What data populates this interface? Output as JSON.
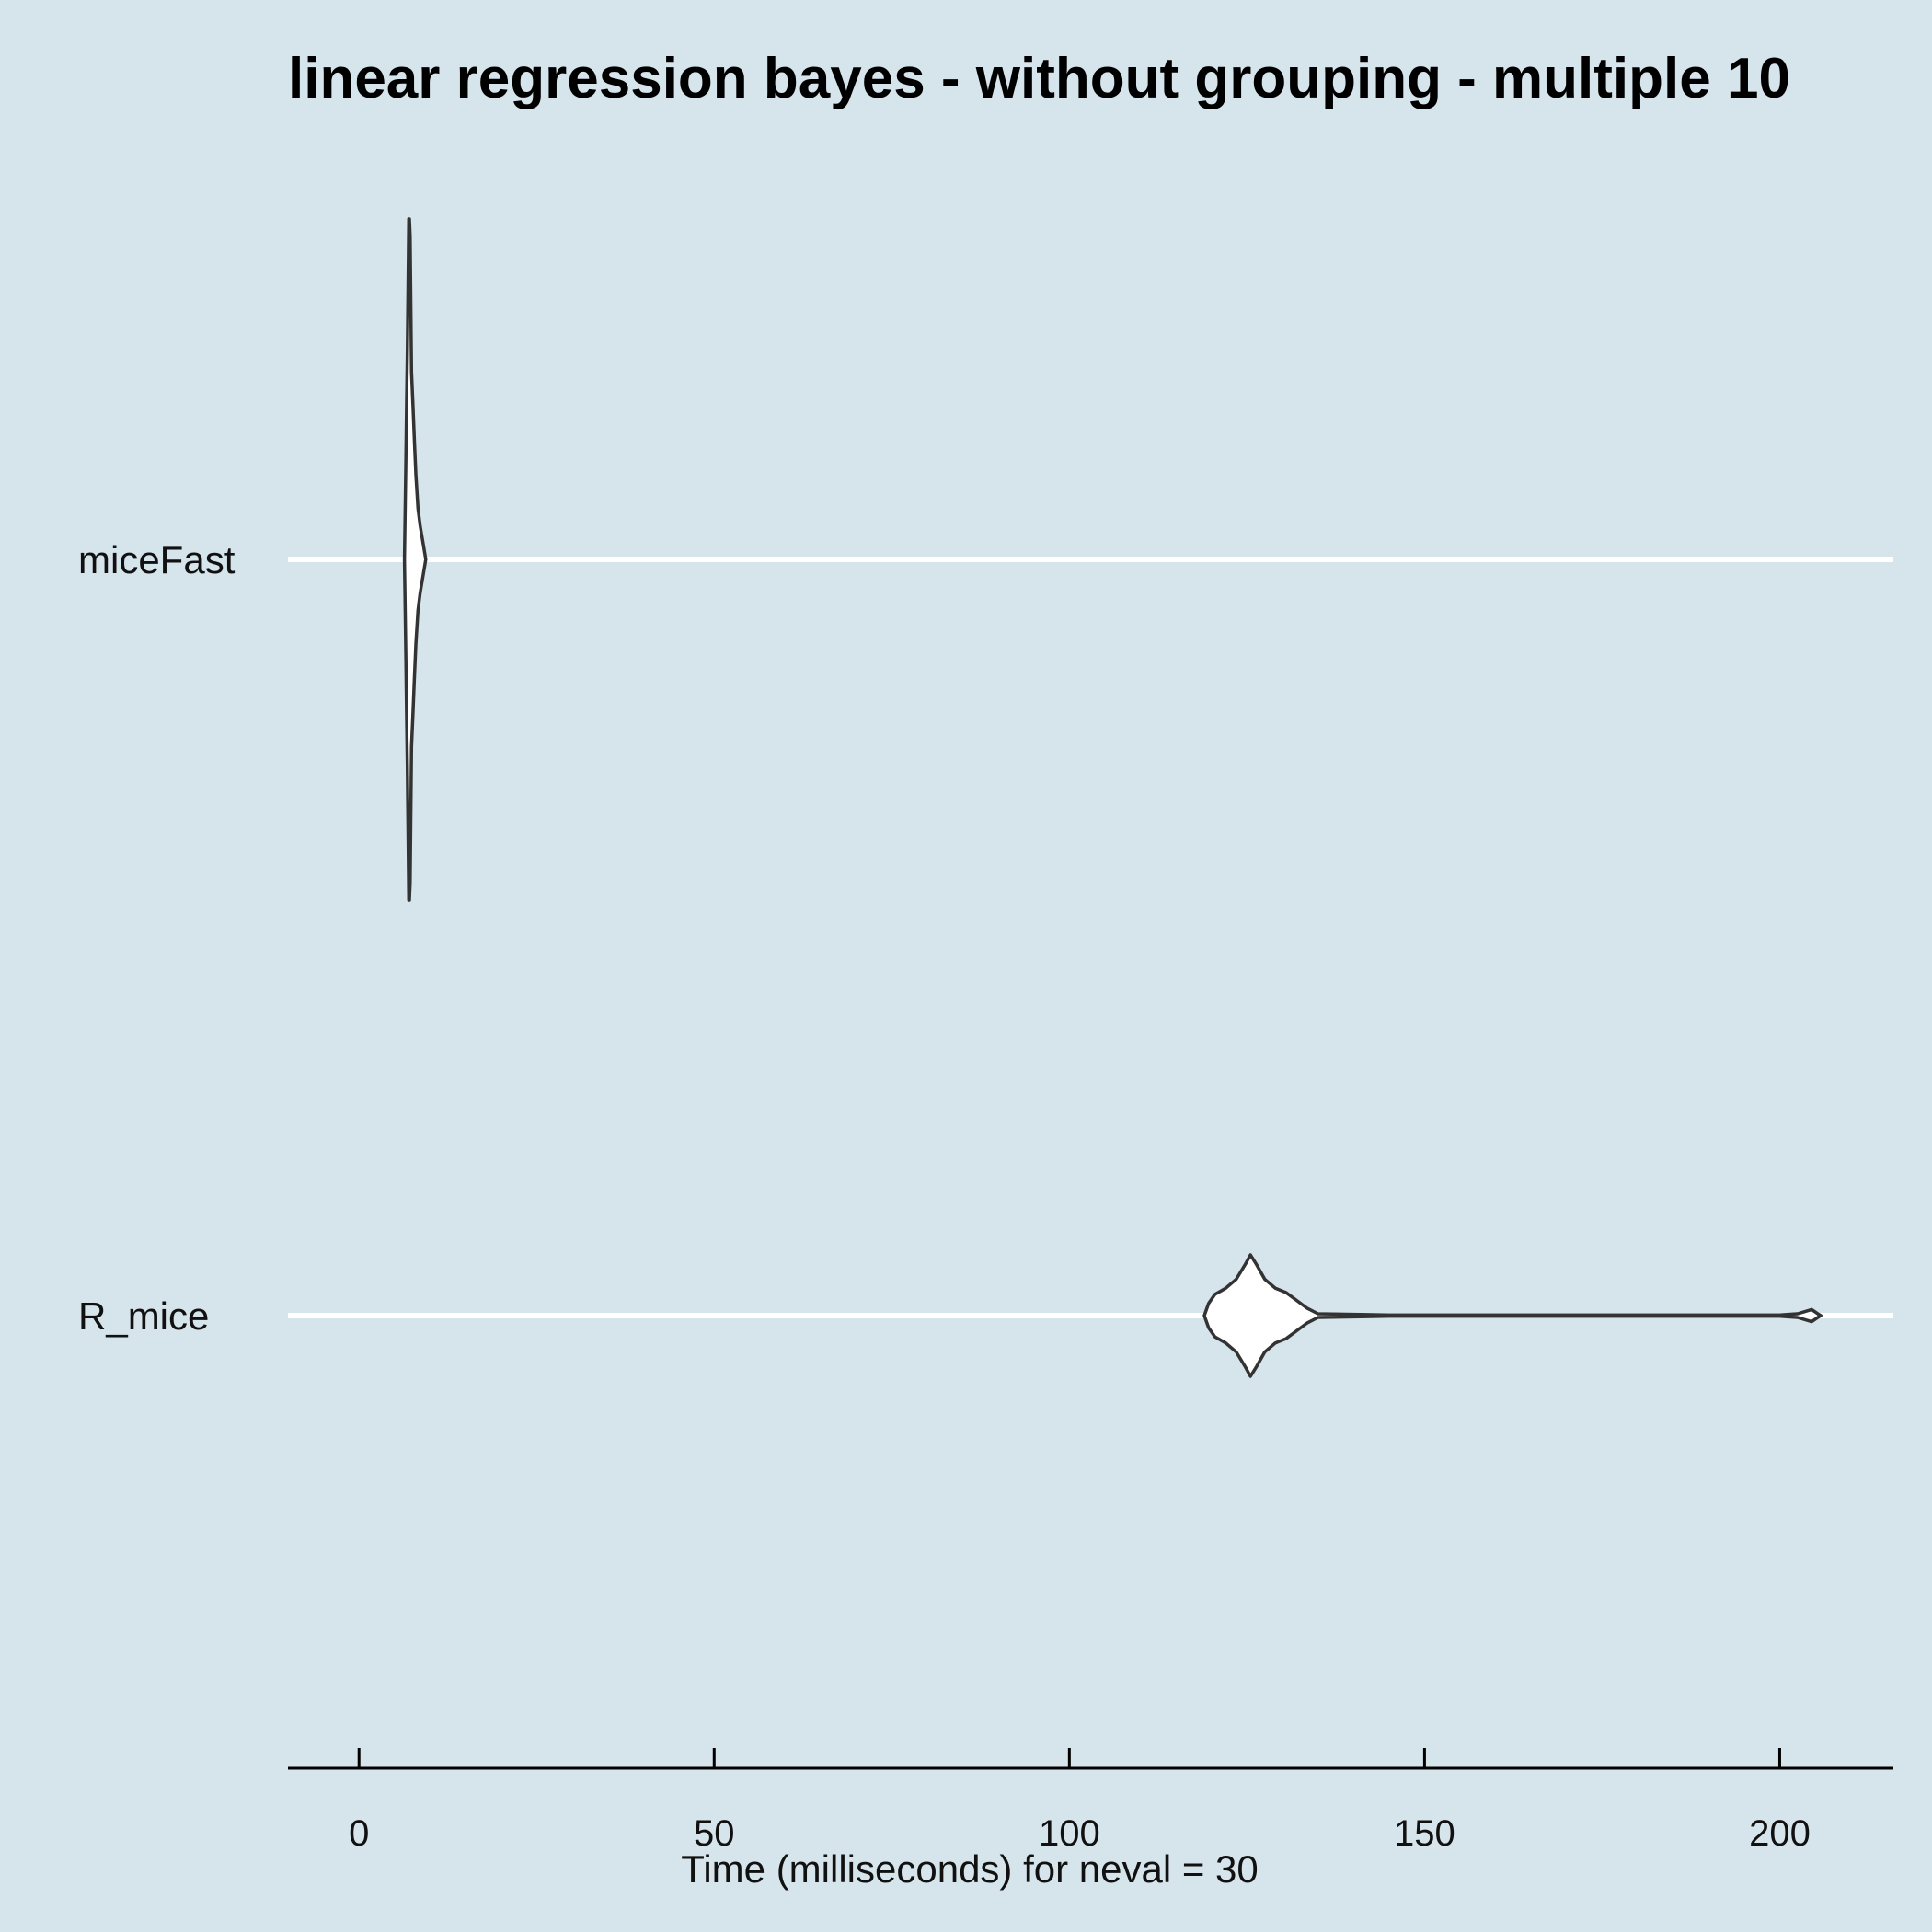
{
  "chart_data": {
    "type": "violin",
    "orientation": "horizontal",
    "title": "linear regression bayes - without grouping - multiple 10",
    "xlabel": "Time (milliseconds) for neval = 30",
    "ylabel": "",
    "xlim": [
      -10,
      216
    ],
    "xticks": [
      0,
      50,
      100,
      150,
      200
    ],
    "xtick_labels": [
      "0",
      "50",
      "100",
      "150",
      "200"
    ],
    "categories": [
      "miceFast",
      "R_mice"
    ],
    "grid": "major y only",
    "colors": {
      "background": "#d6e4eb",
      "gridline": "#ffffff",
      "violin_fill": "#ffffff",
      "violin_stroke": "#333333",
      "axis": "#000000"
    },
    "series": [
      {
        "name": "miceFast",
        "profile": [
          [
            6.4,
            0.0
          ],
          [
            6.5,
            0.15
          ],
          [
            6.6,
            0.3
          ],
          [
            6.7,
            0.45
          ],
          [
            6.8,
            0.6
          ],
          [
            6.9,
            0.8
          ],
          [
            7.0,
            1.0
          ],
          [
            7.1,
            1.0
          ],
          [
            7.2,
            0.95
          ],
          [
            7.4,
            0.55
          ],
          [
            7.6,
            0.45
          ],
          [
            7.8,
            0.35
          ],
          [
            8.0,
            0.25
          ],
          [
            8.3,
            0.15
          ],
          [
            8.6,
            0.1
          ],
          [
            9.0,
            0.05
          ],
          [
            9.4,
            0.0
          ]
        ]
      },
      {
        "name": "R_mice",
        "profile": [
          [
            119.0,
            0.0
          ],
          [
            119.6,
            0.2
          ],
          [
            120.5,
            0.35
          ],
          [
            122.0,
            0.45
          ],
          [
            123.5,
            0.6
          ],
          [
            124.8,
            0.85
          ],
          [
            125.5,
            1.0
          ],
          [
            126.3,
            0.85
          ],
          [
            127.5,
            0.6
          ],
          [
            129.0,
            0.45
          ],
          [
            130.5,
            0.38
          ],
          [
            132.0,
            0.25
          ],
          [
            133.5,
            0.12
          ],
          [
            135.0,
            0.03
          ],
          [
            145.0,
            0.01
          ],
          [
            160.0,
            0.01
          ],
          [
            180.0,
            0.01
          ],
          [
            200.0,
            0.01
          ],
          [
            202.5,
            0.03
          ],
          [
            204.5,
            0.1
          ],
          [
            205.5,
            0.02
          ],
          [
            205.8,
            0.0
          ]
        ]
      }
    ]
  }
}
